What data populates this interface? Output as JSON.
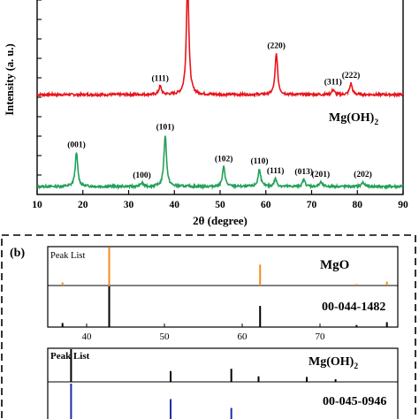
{
  "panel_a": {
    "ylabel": "Intensity (a. u.)",
    "xlabel": "2θ (degree)",
    "compound_label": "Mg(OH)",
    "compound_sub": "2",
    "xticks": [
      "10",
      "20",
      "30",
      "40",
      "50",
      "60",
      "70",
      "80",
      "90"
    ]
  },
  "panel_b": {
    "label": "(b)",
    "xticks": [
      "40",
      "50",
      "60",
      "70"
    ],
    "top_box": {
      "peak_list_label": "Peak List",
      "compound": "MgO",
      "card": "00-044-1482"
    },
    "bottom_box": {
      "peak_list_label": "Peak List",
      "compound": "Mg(OH)",
      "compound_sub": "2",
      "card": "00-045-0946"
    }
  },
  "colors": {
    "mgo_pattern": "#e8141c",
    "mgoh2_pattern": "#22a05a",
    "peak_list_orange": "#f08c1e",
    "reference_black": "#000000",
    "reference_blue": "#1e2aa8"
  },
  "chart_data": [
    {
      "type": "line",
      "name": "XRD pattern, MgO",
      "xlim": [
        10,
        90
      ],
      "peaks": [
        {
          "x": 36.9,
          "height": 0.12,
          "label": "(111)"
        },
        {
          "x": 42.9,
          "height": 1.6,
          "label": ""
        },
        {
          "x": 62.3,
          "height": 0.58,
          "label": "(220)"
        },
        {
          "x": 74.7,
          "height": 0.07,
          "label": "(311)"
        },
        {
          "x": 78.6,
          "height": 0.16,
          "label": "(222)"
        }
      ]
    },
    {
      "type": "line",
      "name": "XRD pattern, Mg(OH)2",
      "xlim": [
        10,
        90
      ],
      "peaks": [
        {
          "x": 18.6,
          "height": 0.48,
          "label": "(001)"
        },
        {
          "x": 32.9,
          "height": 0.05,
          "label": "(100)"
        },
        {
          "x": 38.0,
          "height": 0.73,
          "label": "(101)"
        },
        {
          "x": 50.8,
          "height": 0.28,
          "label": "(102)"
        },
        {
          "x": 58.6,
          "height": 0.25,
          "label": "(110)"
        },
        {
          "x": 62.1,
          "height": 0.11,
          "label": "(111)"
        },
        {
          "x": 68.3,
          "height": 0.1,
          "label": "(013)"
        },
        {
          "x": 72.0,
          "height": 0.06,
          "label": "(201)"
        },
        {
          "x": 81.2,
          "height": 0.06,
          "label": "(202)"
        }
      ]
    },
    {
      "type": "bar",
      "name": "MgO peak list vs 00-044-1482",
      "xlim": [
        35,
        80
      ],
      "peak_list": [
        {
          "x": 36.9,
          "h": 0.08
        },
        {
          "x": 42.9,
          "h": 1.0
        },
        {
          "x": 62.3,
          "h": 0.55
        },
        {
          "x": 74.7,
          "h": 0.04
        },
        {
          "x": 78.6,
          "h": 0.1
        }
      ],
      "reference": [
        {
          "x": 36.9,
          "h": 0.1
        },
        {
          "x": 42.9,
          "h": 1.0
        },
        {
          "x": 62.3,
          "h": 0.52
        },
        {
          "x": 74.7,
          "h": 0.05
        },
        {
          "x": 78.6,
          "h": 0.12
        }
      ]
    },
    {
      "type": "bar",
      "name": "Mg(OH)2 peak list vs 00-045-0946",
      "xlim": [
        35,
        80
      ],
      "peak_list": [
        {
          "x": 38.0,
          "h": 1.0
        },
        {
          "x": 50.8,
          "h": 0.33
        },
        {
          "x": 58.6,
          "h": 0.4
        },
        {
          "x": 62.1,
          "h": 0.17
        },
        {
          "x": 68.3,
          "h": 0.15
        },
        {
          "x": 72.0,
          "h": 0.08
        }
      ],
      "reference": [
        {
          "x": 38.0,
          "h": 1.0
        },
        {
          "x": 50.8,
          "h": 0.65
        },
        {
          "x": 58.6,
          "h": 0.45
        },
        {
          "x": 62.1,
          "h": 0.18
        },
        {
          "x": 68.3,
          "h": 0.2
        },
        {
          "x": 72.0,
          "h": 0.12
        },
        {
          "x": 75.0,
          "h": 0.08
        }
      ]
    }
  ]
}
